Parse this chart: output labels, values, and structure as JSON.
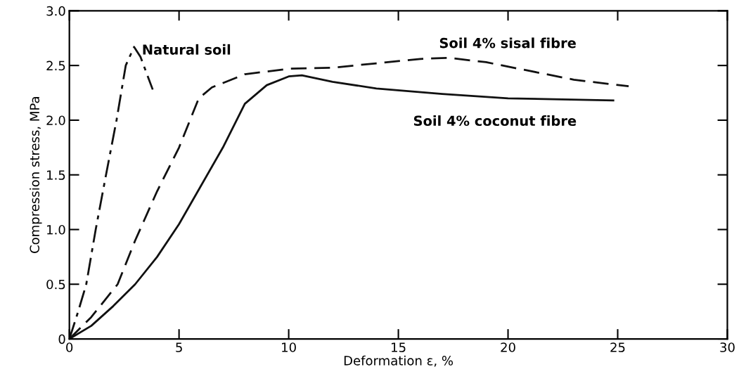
{
  "chart_data": {
    "type": "line",
    "xlabel": "Deformation ε, %",
    "ylabel": "Compression stress, MPa",
    "xlim": [
      0,
      30
    ],
    "ylim": [
      0,
      3.0
    ],
    "xticks": [
      0,
      5,
      10,
      15,
      20,
      25,
      30
    ],
    "yticks": [
      0,
      0.5,
      {
        "value": 1,
        "label": "1.0"
      },
      1.5,
      {
        "value": 2,
        "label": "2.0"
      },
      2.5,
      {
        "value": 3,
        "label": "3.0"
      }
    ],
    "grid": false,
    "marker": "none",
    "series": [
      {
        "name": "Natural soil",
        "color": "#111111",
        "line_style": "dashdot",
        "x": [
          0,
          0.4,
          0.77,
          1.2,
          1.67,
          2.15,
          2.57,
          2.95,
          3.24,
          3.8
        ],
        "values": [
          0,
          0.25,
          0.5,
          1.0,
          1.5,
          2.0,
          2.5,
          2.67,
          2.58,
          2.28
        ]
      },
      {
        "name": "Soil 4% sisal fibre",
        "color": "#111111",
        "line_style": "dashed",
        "x": [
          0,
          1,
          2.2,
          3,
          4,
          5,
          5.9,
          6.5,
          8,
          10,
          12,
          14,
          16,
          17.3,
          19,
          21,
          23,
          25.5
        ],
        "values": [
          0,
          0.2,
          0.5,
          0.9,
          1.35,
          1.75,
          2.2,
          2.3,
          2.42,
          2.47,
          2.48,
          2.52,
          2.56,
          2.57,
          2.53,
          2.45,
          2.37,
          2.31
        ]
      },
      {
        "name": "Soil 4% coconut fibre",
        "color": "#111111",
        "line_style": "solid",
        "x": [
          0,
          1,
          2,
          3,
          4,
          5,
          6,
          7,
          8,
          9,
          10,
          10.6,
          12,
          14,
          17,
          20,
          24.8
        ],
        "values": [
          0,
          0.12,
          0.3,
          0.5,
          0.75,
          1.05,
          1.4,
          1.75,
          2.15,
          2.32,
          2.4,
          2.41,
          2.35,
          2.29,
          2.24,
          2.2,
          2.18
        ]
      }
    ]
  }
}
